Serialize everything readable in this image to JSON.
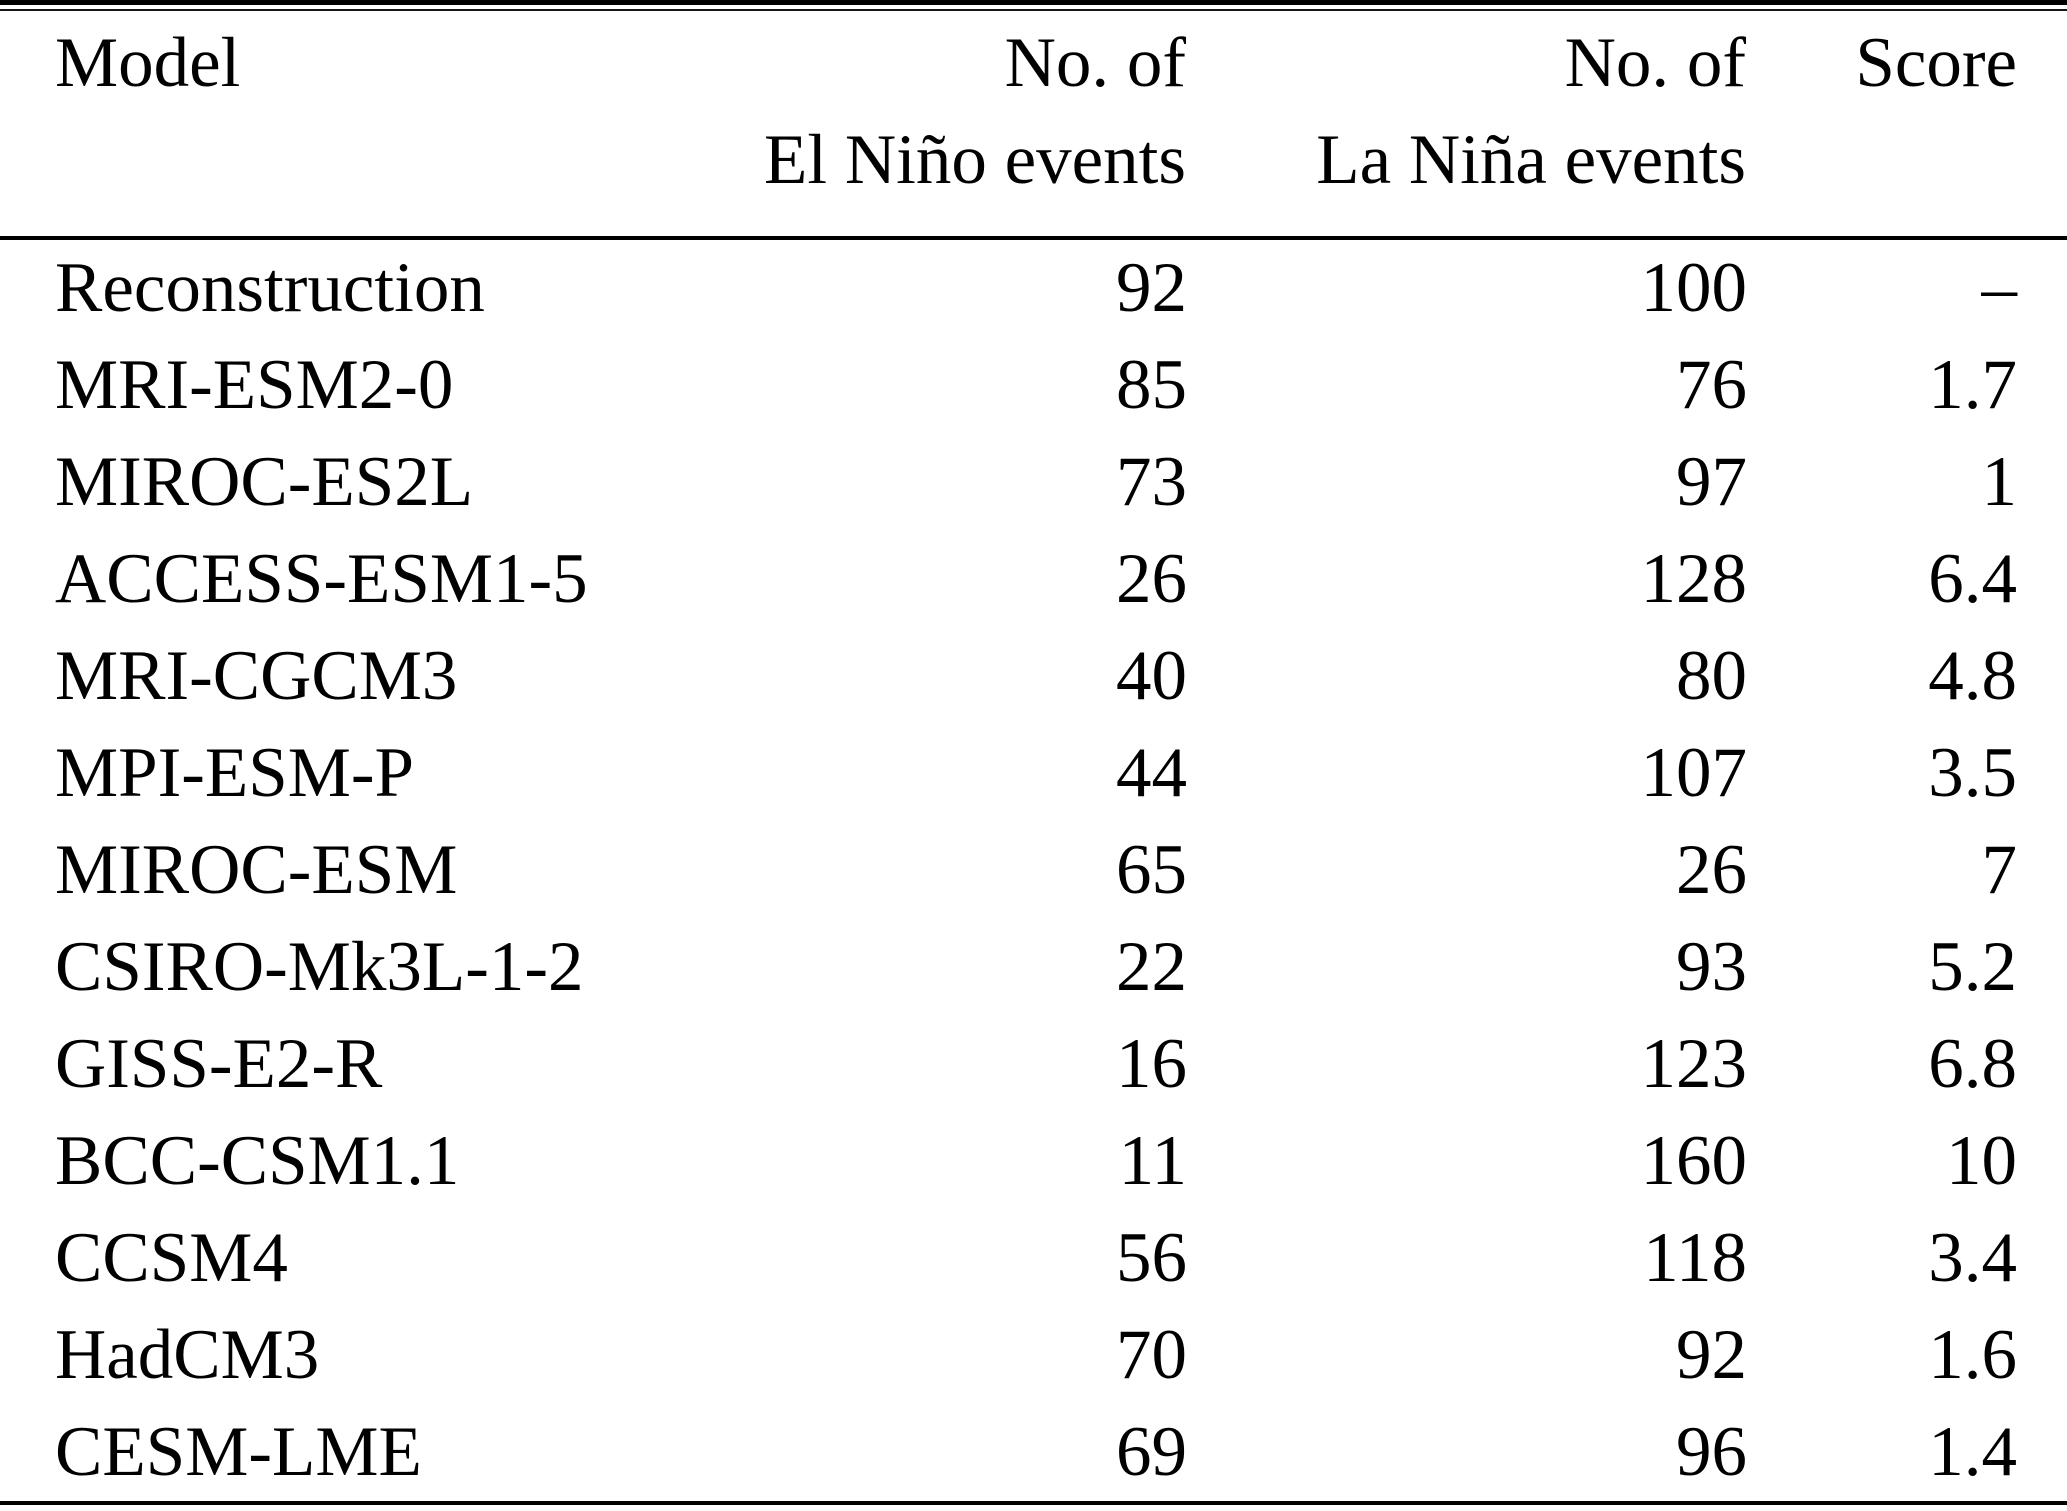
{
  "table": {
    "headers": {
      "model": "Model",
      "elnino_line1": "No. of",
      "elnino_line2": "El Niño events",
      "lanina_line1": "No. of",
      "lanina_line2": "La Niña events",
      "score": "Score"
    },
    "rows": [
      {
        "model": "Reconstruction",
        "elnino": "92",
        "lanina": "100",
        "score": "–"
      },
      {
        "model": "MRI-ESM2-0",
        "elnino": "85",
        "lanina": "76",
        "score": "1.7"
      },
      {
        "model": "MIROC-ES2L",
        "elnino": "73",
        "lanina": "97",
        "score": "1"
      },
      {
        "model": "ACCESS-ESM1-5",
        "elnino": "26",
        "lanina": "128",
        "score": "6.4"
      },
      {
        "model": "MRI-CGCM3",
        "elnino": "40",
        "lanina": "80",
        "score": "4.8"
      },
      {
        "model": "MPI-ESM-P",
        "elnino": "44",
        "lanina": "107",
        "score": "3.5"
      },
      {
        "model": "MIROC-ESM",
        "elnino": "65",
        "lanina": "26",
        "score": "7"
      },
      {
        "model": "CSIRO-Mk3L-1-2",
        "elnino": "22",
        "lanina": "93",
        "score": "5.2"
      },
      {
        "model": "GISS-E2-R",
        "elnino": "16",
        "lanina": "123",
        "score": "6.8"
      },
      {
        "model": "BCC-CSM1.1",
        "elnino": "11",
        "lanina": "160",
        "score": "10"
      },
      {
        "model": "CCSM4",
        "elnino": "56",
        "lanina": "118",
        "score": "3.4"
      },
      {
        "model": "HadCM3",
        "elnino": "70",
        "lanina": "92",
        "score": "1.6"
      },
      {
        "model": "CESM-LME",
        "elnino": "69",
        "lanina": "96",
        "score": "1.4"
      }
    ]
  }
}
